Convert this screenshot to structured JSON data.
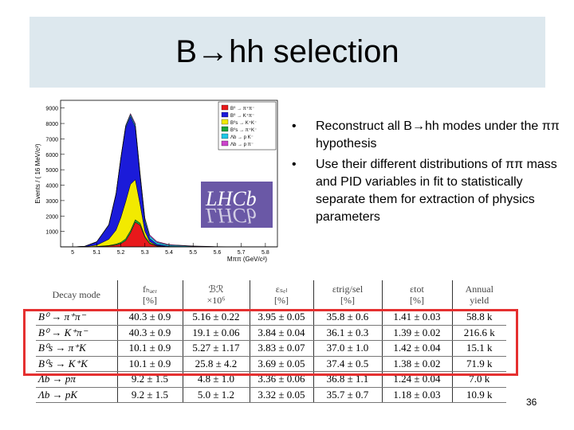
{
  "slide": {
    "title": "B→hh selection",
    "page_number": "36"
  },
  "bullets": [
    {
      "text": "Reconstruct  all B→hh modes under the  ππ hypothesis"
    },
    {
      "text": "Use their different distributions of ππ mass and  PID  variables in fit to statistically separate them for extraction of  physics parameters"
    }
  ],
  "plot": {
    "ylabel": "Events / ( 16 MeV/c²)",
    "xlabel": "Mππ (GeV/c²)",
    "logo_text": "LHCb",
    "y_ticks": [
      "1000",
      "2000",
      "3000",
      "4000",
      "5000",
      "6000",
      "7000",
      "8000",
      "9000"
    ],
    "x_ticks": [
      "5",
      "5.1",
      "5.2",
      "5.3",
      "5.4",
      "5.5",
      "5.6",
      "5.7",
      "5.8"
    ],
    "legend": [
      {
        "label": "B⁰ → π⁺π⁻",
        "color": "#e8191b"
      },
      {
        "label": "B⁰ → K⁺π⁻",
        "color": "#1b1bd9"
      },
      {
        "label": "B⁰s → K⁺K⁻",
        "color": "#f2ea00"
      },
      {
        "label": "B⁰s → π⁺K⁻",
        "color": "#1aa53a"
      },
      {
        "label": "Λb → p K⁻",
        "color": "#1ec8e6"
      },
      {
        "label": "Λb → p π⁻",
        "color": "#cc44cc"
      }
    ]
  },
  "chart_data": {
    "type": "area",
    "xlabel": "Mππ (GeV/c²)",
    "ylabel": "Events / ( 16 MeV/c²)",
    "xlim": [
      4.95,
      5.85
    ],
    "ylim": [
      0,
      9500
    ],
    "x": [
      4.95,
      5.0,
      5.05,
      5.1,
      5.15,
      5.18,
      5.2,
      5.22,
      5.24,
      5.26,
      5.28,
      5.3,
      5.32,
      5.35,
      5.4,
      5.5,
      5.6,
      5.7,
      5.85
    ],
    "series": [
      {
        "name": "B⁰ → π⁺π⁻",
        "color": "#e8191b",
        "values": [
          0,
          0,
          0,
          20,
          60,
          120,
          200,
          400,
          900,
          1600,
          1400,
          600,
          200,
          50,
          0,
          0,
          0,
          0,
          0
        ]
      },
      {
        "name": "B⁰s → π⁺K⁻",
        "color": "#1aa53a",
        "values": [
          0,
          0,
          0,
          10,
          30,
          60,
          90,
          120,
          150,
          160,
          140,
          100,
          60,
          20,
          0,
          0,
          0,
          0,
          0
        ]
      },
      {
        "name": "B⁰s → K⁺K⁻",
        "color": "#f2ea00",
        "values": [
          0,
          0,
          10,
          80,
          400,
          900,
          1600,
          2400,
          3000,
          2600,
          1200,
          300,
          80,
          20,
          0,
          0,
          0,
          0,
          0
        ]
      },
      {
        "name": "B⁰ → K⁺π⁻",
        "color": "#1b1bd9",
        "values": [
          0,
          0,
          20,
          200,
          900,
          2300,
          3800,
          4800,
          4400,
          3400,
          1800,
          600,
          200,
          80,
          30,
          10,
          0,
          0,
          0
        ]
      },
      {
        "name": "Λb → p K⁻",
        "color": "#1ec8e6",
        "values": [
          0,
          0,
          10,
          20,
          40,
          60,
          80,
          100,
          120,
          140,
          160,
          180,
          160,
          120,
          80,
          30,
          10,
          0,
          0
        ]
      },
      {
        "name": "Λb → p π⁻",
        "color": "#cc44cc",
        "values": [
          0,
          0,
          0,
          10,
          20,
          30,
          40,
          60,
          80,
          100,
          110,
          100,
          80,
          60,
          40,
          20,
          10,
          0,
          0
        ]
      }
    ]
  },
  "table": {
    "headers": [
      {
        "l1": "Decay mode",
        "l2": ""
      },
      {
        "l1": "fₕₐₑᵣ",
        "l2": "[%]"
      },
      {
        "l1": "ℬℛ",
        "l2": "×10⁶"
      },
      {
        "l1": "εₛₑₗ",
        "l2": "[%]"
      },
      {
        "l1": "εtrig/sel",
        "l2": "[%]"
      },
      {
        "l1": "εtot",
        "l2": "[%]"
      },
      {
        "l1": "Annual",
        "l2": "yield"
      }
    ],
    "rows": [
      [
        "B⁰ → π⁺π⁻",
        "40.3 ± 0.9",
        "5.16 ± 0.22",
        "3.95 ± 0.05",
        "35.8 ± 0.6",
        "1.41 ± 0.03",
        "58.8 k"
      ],
      [
        "B⁰ → K⁺π⁻",
        "40.3 ± 0.9",
        "19.1 ± 0.06",
        "3.84 ± 0.04",
        "36.1 ± 0.3",
        "1.39 ± 0.02",
        "216.6 k"
      ],
      [
        "B⁰s → π⁺K",
        "10.1 ± 0.9",
        "5.27 ± 1.17",
        "3.83 ± 0.07",
        "37.0 ± 1.0",
        "1.42 ± 0.04",
        "15.1 k"
      ],
      [
        "B⁰s → K⁺K",
        "10.1 ± 0.9",
        "25.8 ± 4.2",
        "3.69 ± 0.05",
        "37.4 ± 0.5",
        "1.38 ± 0.02",
        "71.9 k"
      ],
      [
        "Λb → pπ",
        "9.2 ± 1.5",
        "4.8 ± 1.0",
        "3.36 ± 0.06",
        "36.8 ± 1.1",
        "1.24 ± 0.04",
        "7.0 k"
      ],
      [
        "Λb → pK",
        "9.2 ± 1.5",
        "5.0 ± 1.2",
        "3.32 ± 0.05",
        "35.7 ± 0.7",
        "1.18 ± 0.03",
        "10.9 k"
      ]
    ]
  }
}
